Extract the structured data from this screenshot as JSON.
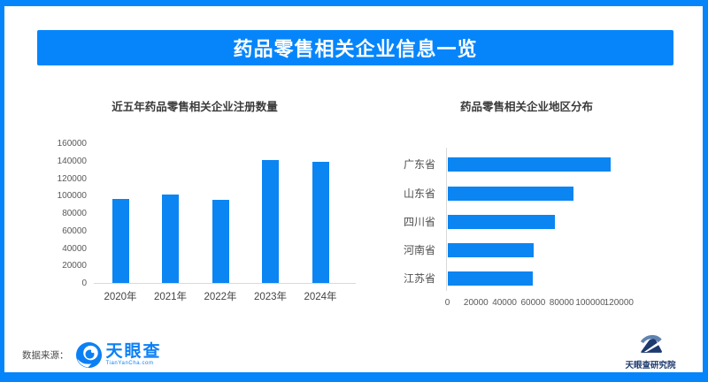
{
  "page": {
    "colors": {
      "frame_blue": "#0685fb",
      "bar_blue": "#0b85f2",
      "axis_gray": "#d9d9d9",
      "tianyancha_blue": "#0b80f5",
      "institute_navy": "#1d3a70"
    }
  },
  "header": {
    "title": "药品零售相关企业信息一览"
  },
  "chart_data": [
    {
      "type": "bar",
      "orientation": "vertical",
      "title": "近五年药品零售相关企业注册数量",
      "categories": [
        "2020年",
        "2021年",
        "2022年",
        "2023年",
        "2024年"
      ],
      "values": [
        97000,
        101500,
        95500,
        141000,
        139000
      ],
      "ylabel": "",
      "xlabel": "",
      "ylim": [
        0,
        160000
      ],
      "yticks": [
        0,
        20000,
        40000,
        60000,
        80000,
        100000,
        120000,
        140000,
        160000
      ],
      "grid": false,
      "legend": false,
      "bar_color": "#0b85f2"
    },
    {
      "type": "bar",
      "orientation": "horizontal",
      "title": "药品零售相关企业地区分布",
      "categories": [
        "广东省",
        "山东省",
        "四川省",
        "河南省",
        "江苏省"
      ],
      "values": [
        114000,
        88000,
        75000,
        60500,
        59500
      ],
      "ylabel": "",
      "xlabel": "",
      "xlim": [
        0,
        120000
      ],
      "xticks": [
        0,
        20000,
        40000,
        60000,
        80000,
        100000,
        120000
      ],
      "grid": false,
      "legend": false,
      "bar_color": "#0b85f2"
    }
  ],
  "footer": {
    "source_label": "数据来源：",
    "source_logo": {
      "name": "天眼查",
      "subtext": "TianYanCha.com"
    },
    "right_logo": {
      "name": "天眼查研究院"
    }
  }
}
